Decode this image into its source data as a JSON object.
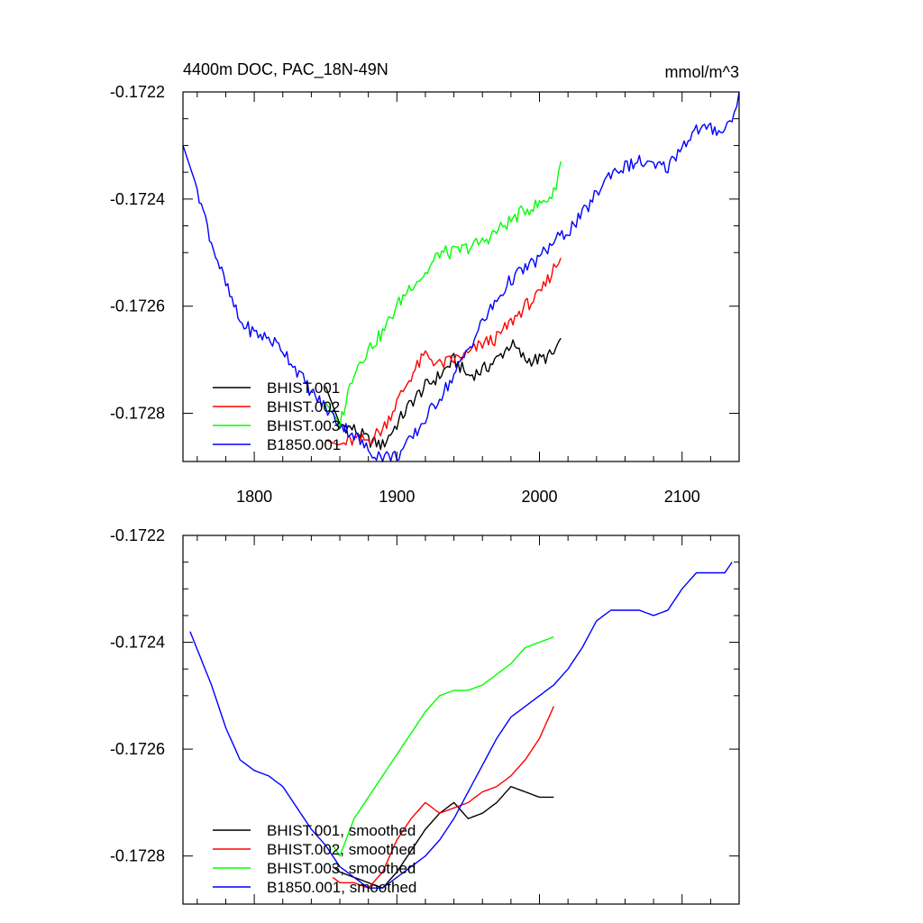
{
  "figure": {
    "title_left": "4400m DOC, PAC_18N-49N",
    "title_right": "mmol/m^3"
  },
  "colors": {
    "BHIST.001": "#000000",
    "BHIST.002": "#ff0000",
    "BHIST.003": "#00ff00",
    "B1850.001": "#0000ff"
  },
  "chart_data": [
    {
      "type": "line",
      "title": "4400m DOC, PAC_18N-49N",
      "units": "mmol/m^3",
      "xlim": [
        1750,
        2140
      ],
      "ylim": [
        -0.17289,
        -0.1722
      ],
      "x_ticks": [
        1800,
        1900,
        2000,
        2100
      ],
      "x_tick_labels": [
        "1800",
        "1900",
        "2000",
        "2100"
      ],
      "y_ticks": [
        -0.1722,
        -0.1724,
        -0.1726,
        -0.1728
      ],
      "y_tick_labels": [
        "-0.1722",
        "-0.1724",
        "-0.1726",
        "-0.1728"
      ],
      "legend_position": "bottom-left",
      "series": [
        {
          "name": "BHIST.001",
          "x": [
            1850,
            1860,
            1870,
            1880,
            1890,
            1900,
            1910,
            1920,
            1930,
            1940,
            1950,
            1960,
            1970,
            1980,
            1990,
            2000,
            2010,
            2015
          ],
          "y": [
            -0.17275,
            -0.17282,
            -0.17283,
            -0.17285,
            -0.17286,
            -0.17282,
            -0.17278,
            -0.17275,
            -0.17273,
            -0.1727,
            -0.17273,
            -0.17272,
            -0.1727,
            -0.17267,
            -0.1727,
            -0.1727,
            -0.17269,
            -0.17266
          ]
        },
        {
          "name": "BHIST.002",
          "x": [
            1850,
            1860,
            1870,
            1880,
            1890,
            1900,
            1910,
            1920,
            1930,
            1940,
            1950,
            1960,
            1970,
            1980,
            1990,
            2000,
            2010,
            2015
          ],
          "y": [
            -0.17285,
            -0.17286,
            -0.17285,
            -0.17285,
            -0.17283,
            -0.17278,
            -0.17273,
            -0.17269,
            -0.17271,
            -0.1727,
            -0.17269,
            -0.17267,
            -0.17266,
            -0.17263,
            -0.1726,
            -0.17258,
            -0.17253,
            -0.17251
          ]
        },
        {
          "name": "BHIST.003",
          "x": [
            1850,
            1860,
            1870,
            1880,
            1890,
            1900,
            1910,
            1920,
            1930,
            1940,
            1950,
            1960,
            1970,
            1980,
            1990,
            2000,
            2010,
            2015
          ],
          "y": [
            -0.17278,
            -0.17282,
            -0.17272,
            -0.17268,
            -0.17265,
            -0.1726,
            -0.17256,
            -0.17254,
            -0.1725,
            -0.1725,
            -0.17249,
            -0.17248,
            -0.17246,
            -0.17244,
            -0.17242,
            -0.17241,
            -0.17239,
            -0.17233
          ]
        },
        {
          "name": "B1850.001",
          "x": [
            1750,
            1760,
            1770,
            1780,
            1790,
            1800,
            1810,
            1820,
            1830,
            1840,
            1850,
            1860,
            1870,
            1880,
            1890,
            1900,
            1910,
            1920,
            1930,
            1940,
            1950,
            1960,
            1970,
            1980,
            1990,
            2000,
            2010,
            2020,
            2030,
            2040,
            2050,
            2060,
            2070,
            2080,
            2090,
            2100,
            2110,
            2120,
            2130,
            2135,
            2140
          ],
          "y": [
            -0.1723,
            -0.17238,
            -0.17248,
            -0.17256,
            -0.17263,
            -0.17265,
            -0.17266,
            -0.17268,
            -0.17272,
            -0.17276,
            -0.17279,
            -0.17282,
            -0.17284,
            -0.17287,
            -0.17288,
            -0.17288,
            -0.17285,
            -0.17281,
            -0.17277,
            -0.17273,
            -0.17268,
            -0.17263,
            -0.17259,
            -0.17255,
            -0.17253,
            -0.17251,
            -0.17248,
            -0.17246,
            -0.17243,
            -0.17239,
            -0.17235,
            -0.17234,
            -0.17233,
            -0.17234,
            -0.17234,
            -0.1723,
            -0.17227,
            -0.17227,
            -0.17227,
            -0.17225,
            -0.1722
          ]
        }
      ]
    },
    {
      "type": "line",
      "title": "",
      "xlim": [
        1750,
        2140
      ],
      "ylim": [
        -0.17289,
        -0.1722
      ],
      "x_ticks": [
        1800,
        1900,
        2000,
        2100
      ],
      "y_ticks": [
        -0.1722,
        -0.1724,
        -0.1726,
        -0.1728
      ],
      "y_tick_labels": [
        "-0.1722",
        "-0.1724",
        "-0.1726",
        "-0.1728"
      ],
      "legend_position": "bottom-left",
      "series": [
        {
          "name": "BHIST.001, smoothed",
          "x": [
            1855,
            1860,
            1870,
            1880,
            1890,
            1900,
            1910,
            1920,
            1930,
            1940,
            1950,
            1960,
            1970,
            1980,
            1990,
            2000,
            2010
          ],
          "y": [
            -0.17282,
            -0.17283,
            -0.17284,
            -0.17285,
            -0.17286,
            -0.17283,
            -0.17279,
            -0.17275,
            -0.17272,
            -0.1727,
            -0.17273,
            -0.17272,
            -0.1727,
            -0.17267,
            -0.17268,
            -0.17269,
            -0.17269
          ]
        },
        {
          "name": "BHIST.002, smoothed",
          "x": [
            1855,
            1860,
            1870,
            1880,
            1890,
            1900,
            1910,
            1920,
            1930,
            1940,
            1950,
            1960,
            1970,
            1980,
            1990,
            2000,
            2010
          ],
          "y": [
            -0.17284,
            -0.17285,
            -0.17285,
            -0.17286,
            -0.17283,
            -0.17277,
            -0.17273,
            -0.1727,
            -0.17272,
            -0.17271,
            -0.1727,
            -0.17268,
            -0.17267,
            -0.17265,
            -0.17262,
            -0.17258,
            -0.17252
          ]
        },
        {
          "name": "BHIST.003, smoothed",
          "x": [
            1855,
            1860,
            1870,
            1880,
            1890,
            1900,
            1910,
            1920,
            1930,
            1940,
            1950,
            1960,
            1970,
            1980,
            1990,
            2000,
            2010
          ],
          "y": [
            -0.17278,
            -0.1728,
            -0.17273,
            -0.17269,
            -0.17265,
            -0.17261,
            -0.17257,
            -0.17253,
            -0.1725,
            -0.17249,
            -0.17249,
            -0.17248,
            -0.17246,
            -0.17244,
            -0.17241,
            -0.1724,
            -0.17239
          ]
        },
        {
          "name": "B1850.001, smoothed",
          "x": [
            1755,
            1770,
            1780,
            1790,
            1800,
            1810,
            1820,
            1830,
            1840,
            1850,
            1860,
            1870,
            1880,
            1890,
            1900,
            1910,
            1920,
            1930,
            1940,
            1950,
            1960,
            1970,
            1980,
            1990,
            2000,
            2010,
            2020,
            2030,
            2040,
            2050,
            2060,
            2070,
            2080,
            2090,
            2100,
            2110,
            2120,
            2130,
            2135
          ],
          "y": [
            -0.17238,
            -0.17248,
            -0.17256,
            -0.17262,
            -0.17264,
            -0.17265,
            -0.17267,
            -0.17271,
            -0.17275,
            -0.17278,
            -0.17282,
            -0.17284,
            -0.17286,
            -0.17286,
            -0.17284,
            -0.17282,
            -0.1728,
            -0.17277,
            -0.17273,
            -0.17268,
            -0.17263,
            -0.17258,
            -0.17254,
            -0.17252,
            -0.1725,
            -0.17248,
            -0.17245,
            -0.17241,
            -0.17236,
            -0.17234,
            -0.17234,
            -0.17234,
            -0.17235,
            -0.17234,
            -0.1723,
            -0.17227,
            -0.17227,
            -0.17227,
            -0.17225
          ]
        }
      ]
    }
  ]
}
